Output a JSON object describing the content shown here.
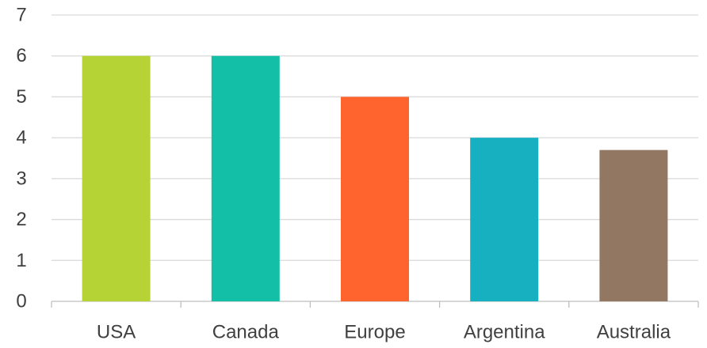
{
  "chart_data": {
    "type": "bar",
    "categories": [
      "USA",
      "Canada",
      "Europe",
      "Argentina",
      "Australia"
    ],
    "values": [
      6,
      6,
      5,
      4,
      3.7
    ],
    "colors": [
      "#b5d334",
      "#14bfa8",
      "#ff642e",
      "#17b0c0",
      "#927863"
    ],
    "ylim": [
      0,
      7
    ],
    "yticks": [
      "0",
      "1",
      "2",
      "3",
      "4",
      "5",
      "6",
      "7"
    ],
    "grid": true,
    "legend": "none",
    "title": "",
    "xlabel": "",
    "ylabel": ""
  }
}
